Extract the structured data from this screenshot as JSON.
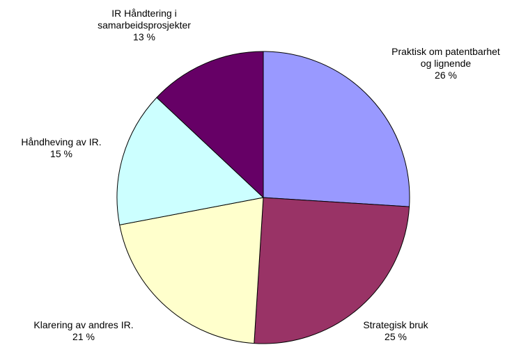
{
  "chart_data": {
    "type": "pie",
    "categories": [
      "Praktisk om patentbarhet\nog lignende",
      "Strategisk bruk",
      "Klarering av andres IR.",
      "Håndheving av IR.",
      "IR Håndtering i\nsamarbeidsprosjekter"
    ],
    "values": [
      26,
      25,
      21,
      15,
      13
    ],
    "value_labels": [
      "26 %",
      "25 %",
      "21 %",
      "15 %",
      "13 %"
    ],
    "colors": [
      "#9999ff",
      "#993366",
      "#ffffcc",
      "#ccffff",
      "#660066"
    ]
  }
}
